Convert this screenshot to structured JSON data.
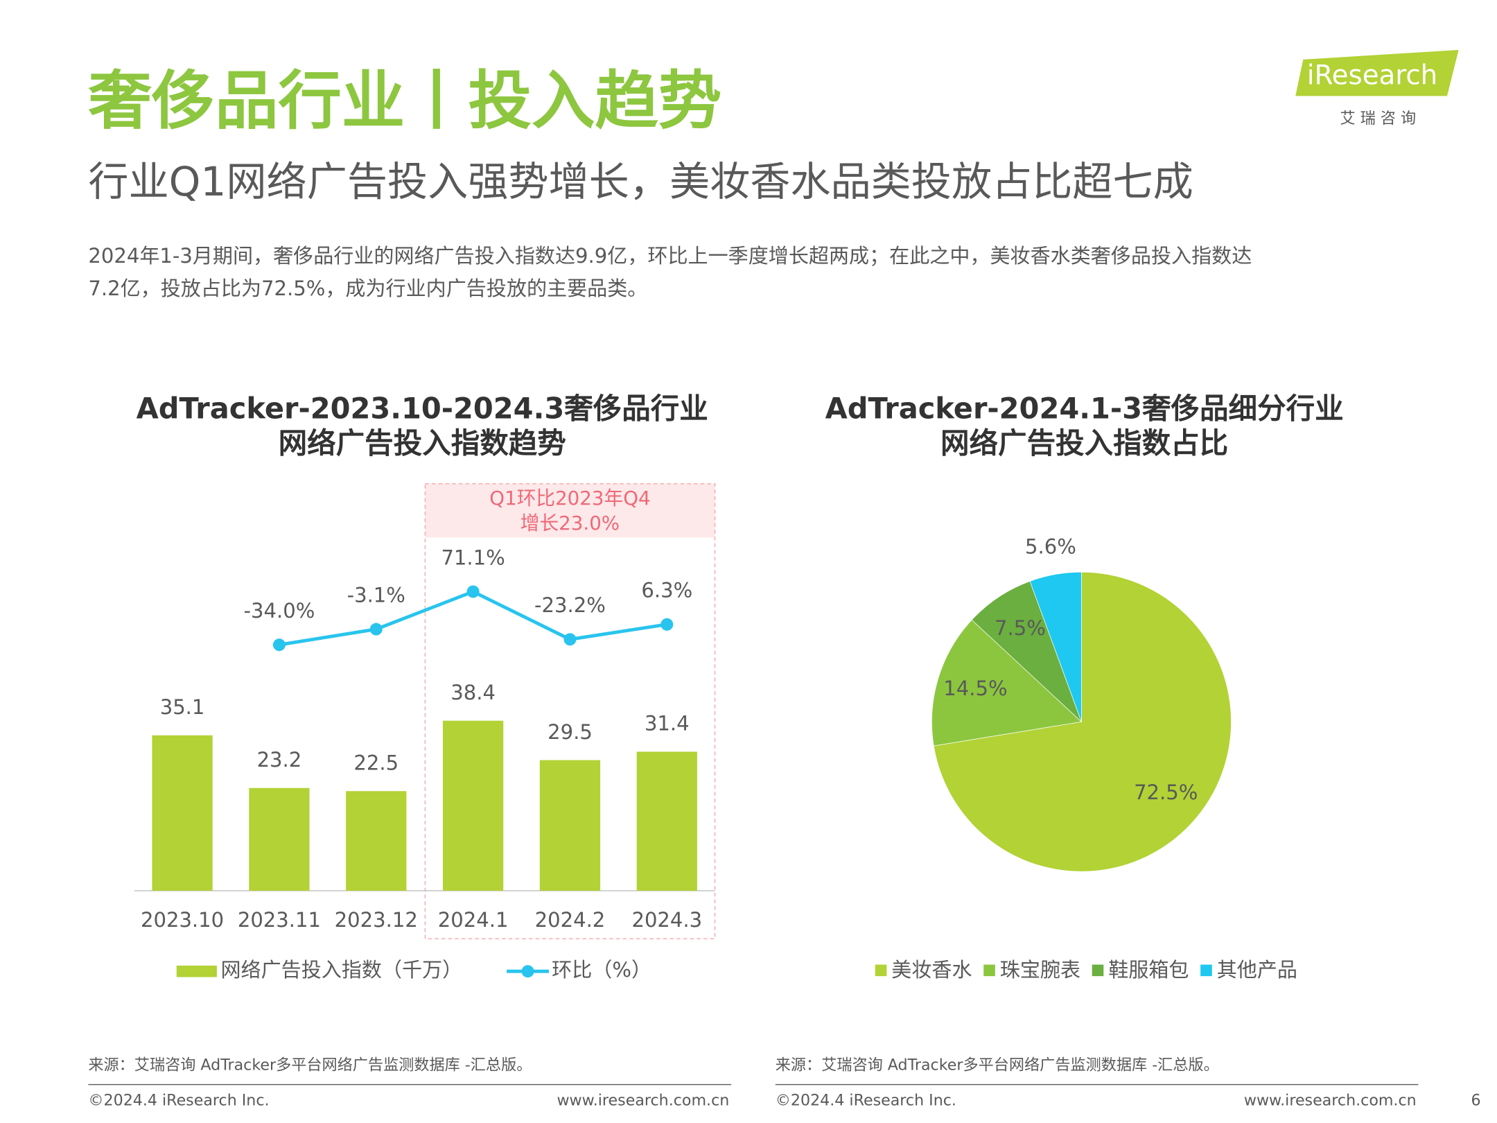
{
  "header": {
    "title": "奢侈品行业丨投入趋势",
    "subtitle": "行业Q1网络广告投入强势增长，美妆香水品类投放占比超七成",
    "body": [
      "2024年1-3月期间，奢侈品行业的网络广告投入指数达9.9亿，环比上一季度增长超两成；在此之中，美妆香水类奢侈品投入指数达",
      "7.2亿，投放占比为72.5%，成为行业内广告投放的主要品类。"
    ],
    "logo": "iResearch",
    "logo_sub": "艾  瑞  咨  询"
  },
  "chart_data": [
    {
      "type": "bar",
      "title": [
        "AdTracker-2023.10-2024.3奢侈品行业",
        "网络广告投入指数趋势"
      ],
      "categories": [
        "2023.10",
        "2023.11",
        "2023.12",
        "2024.1",
        "2024.2",
        "2024.3"
      ],
      "ylim": [
        0,
        80
      ],
      "y2lim": [
        -520,
        180
      ],
      "annotation": [
        "Q1环比2023年Q4",
        "增长23.0%"
      ],
      "series": [
        {
          "name": "网络广告投入指数（千万）",
          "color": "#b2d235",
          "values": [
            35.1,
            23.2,
            22.5,
            38.4,
            29.5,
            31.4
          ]
        },
        {
          "name": "环比（%）",
          "type": "line",
          "axis": "y2",
          "color": "#29c4ee",
          "values": [
            null,
            -34.0,
            -3.1,
            71.1,
            -23.2,
            6.3
          ],
          "value_labels": [
            null,
            "-34.0%",
            "-3.1%",
            "71.1%",
            "-23.2%",
            "6.3%"
          ]
        }
      ]
    },
    {
      "type": "pie",
      "title": [
        "AdTracker-2024.1-3奢侈品细分行业",
        "网络广告投入指数占比"
      ],
      "categories": [
        "美妆香水",
        "珠宝腕表",
        "鞋服箱包",
        "其他产品"
      ],
      "values": [
        72.5,
        14.5,
        7.5,
        5.6
      ],
      "value_labels": [
        "72.5%",
        "14.5%",
        "7.5%",
        "5.6%"
      ],
      "colors": [
        "#b2d235",
        "#8cc63f",
        "#6aaf3f",
        "#1ec8f0"
      ]
    }
  ],
  "footer": {
    "source_left": "来源：艾瑞咨询 AdTracker多平台网络广告监测数据库 -汇总版。",
    "source_right": "来源：艾瑞咨询 AdTracker多平台网络广告监测数据库 -汇总版。",
    "copyright_left": "©2024.4 iResearch Inc.",
    "copyright_right": "©2024.4 iResearch Inc.",
    "url_left": "www.iresearch.com.cn",
    "url_right": "www.iresearch.com.cn",
    "page": "6"
  }
}
